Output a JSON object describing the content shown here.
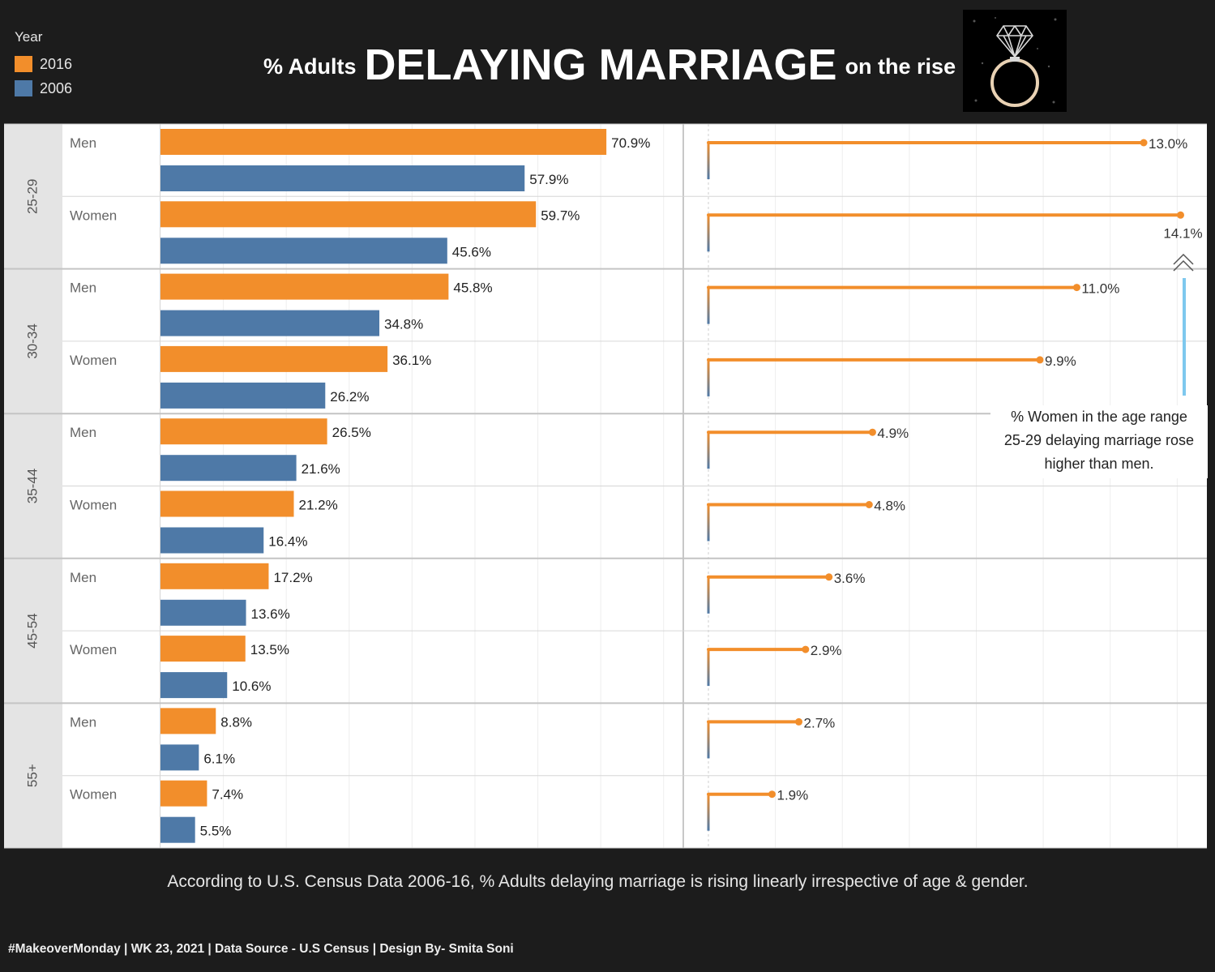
{
  "legend": {
    "title": "Year",
    "items": [
      {
        "label": "2016",
        "color": "#f28e2b"
      },
      {
        "label": "2006",
        "color": "#4e79a7"
      }
    ]
  },
  "title": {
    "prefix": "% Adults",
    "main": "DELAYING MARRIAGE",
    "suffix": "on the rise"
  },
  "annotation": {
    "lines": [
      "% Women in the age range",
      "25-29 delaying marriage rose",
      "higher than men."
    ]
  },
  "conclusion": "According to U.S. Census Data 2006-16, % Adults delaying marriage is rising linearly irrespective of age & gender.",
  "footer": "#MakeoverMonday | WK 23, 2021 | Data Source - U.S Census | Design By- Smita Soni",
  "chart_data": {
    "type": "bar",
    "series": [
      {
        "name": "2016",
        "color": "#f28e2b"
      },
      {
        "name": "2006",
        "color": "#4e79a7"
      }
    ],
    "groups": [
      {
        "age": "25-29",
        "rows": [
          {
            "gender": "Men",
            "v2016": 70.9,
            "v2006": 57.9,
            "change": 13.0,
            "label2016": "70.9%",
            "label2006": "57.9%",
            "label_change": "13.0%"
          },
          {
            "gender": "Women",
            "v2016": 59.7,
            "v2006": 45.6,
            "change": 14.1,
            "label2016": "59.7%",
            "label2006": "45.6%",
            "label_change": "14.1%"
          }
        ]
      },
      {
        "age": "30-34",
        "rows": [
          {
            "gender": "Men",
            "v2016": 45.8,
            "v2006": 34.8,
            "change": 11.0,
            "label2016": "45.8%",
            "label2006": "34.8%",
            "label_change": "11.0%"
          },
          {
            "gender": "Women",
            "v2016": 36.1,
            "v2006": 26.2,
            "change": 9.9,
            "label2016": "36.1%",
            "label2006": "26.2%",
            "label_change": "9.9%"
          }
        ]
      },
      {
        "age": "35-44",
        "rows": [
          {
            "gender": "Men",
            "v2016": 26.5,
            "v2006": 21.6,
            "change": 4.9,
            "label2016": "26.5%",
            "label2006": "21.6%",
            "label_change": "4.9%"
          },
          {
            "gender": "Women",
            "v2016": 21.2,
            "v2006": 16.4,
            "change": 4.8,
            "label2016": "21.2%",
            "label2006": "16.4%",
            "label_change": "4.8%"
          }
        ]
      },
      {
        "age": "45-54",
        "rows": [
          {
            "gender": "Men",
            "v2016": 17.2,
            "v2006": 13.6,
            "change": 3.6,
            "label2016": "17.2%",
            "label2006": "13.6%",
            "label_change": "3.6%"
          },
          {
            "gender": "Women",
            "v2016": 13.5,
            "v2006": 10.6,
            "change": 2.9,
            "label2016": "13.5%",
            "label2006": "10.6%",
            "label_change": "2.9%"
          }
        ]
      },
      {
        "age": "55+",
        "rows": [
          {
            "gender": "Men",
            "v2016": 8.8,
            "v2006": 6.1,
            "change": 2.7,
            "label2016": "8.8%",
            "label2006": "6.1%",
            "label_change": "2.7%"
          },
          {
            "gender": "Women",
            "v2016": 7.4,
            "v2006": 5.5,
            "change": 1.9,
            "label2016": "7.4%",
            "label2006": "5.5%",
            "label_change": "1.9%"
          }
        ]
      }
    ],
    "bar_axis_range": [
      0,
      83
    ],
    "change_axis_range": [
      0,
      14.1
    ],
    "grid": true
  }
}
